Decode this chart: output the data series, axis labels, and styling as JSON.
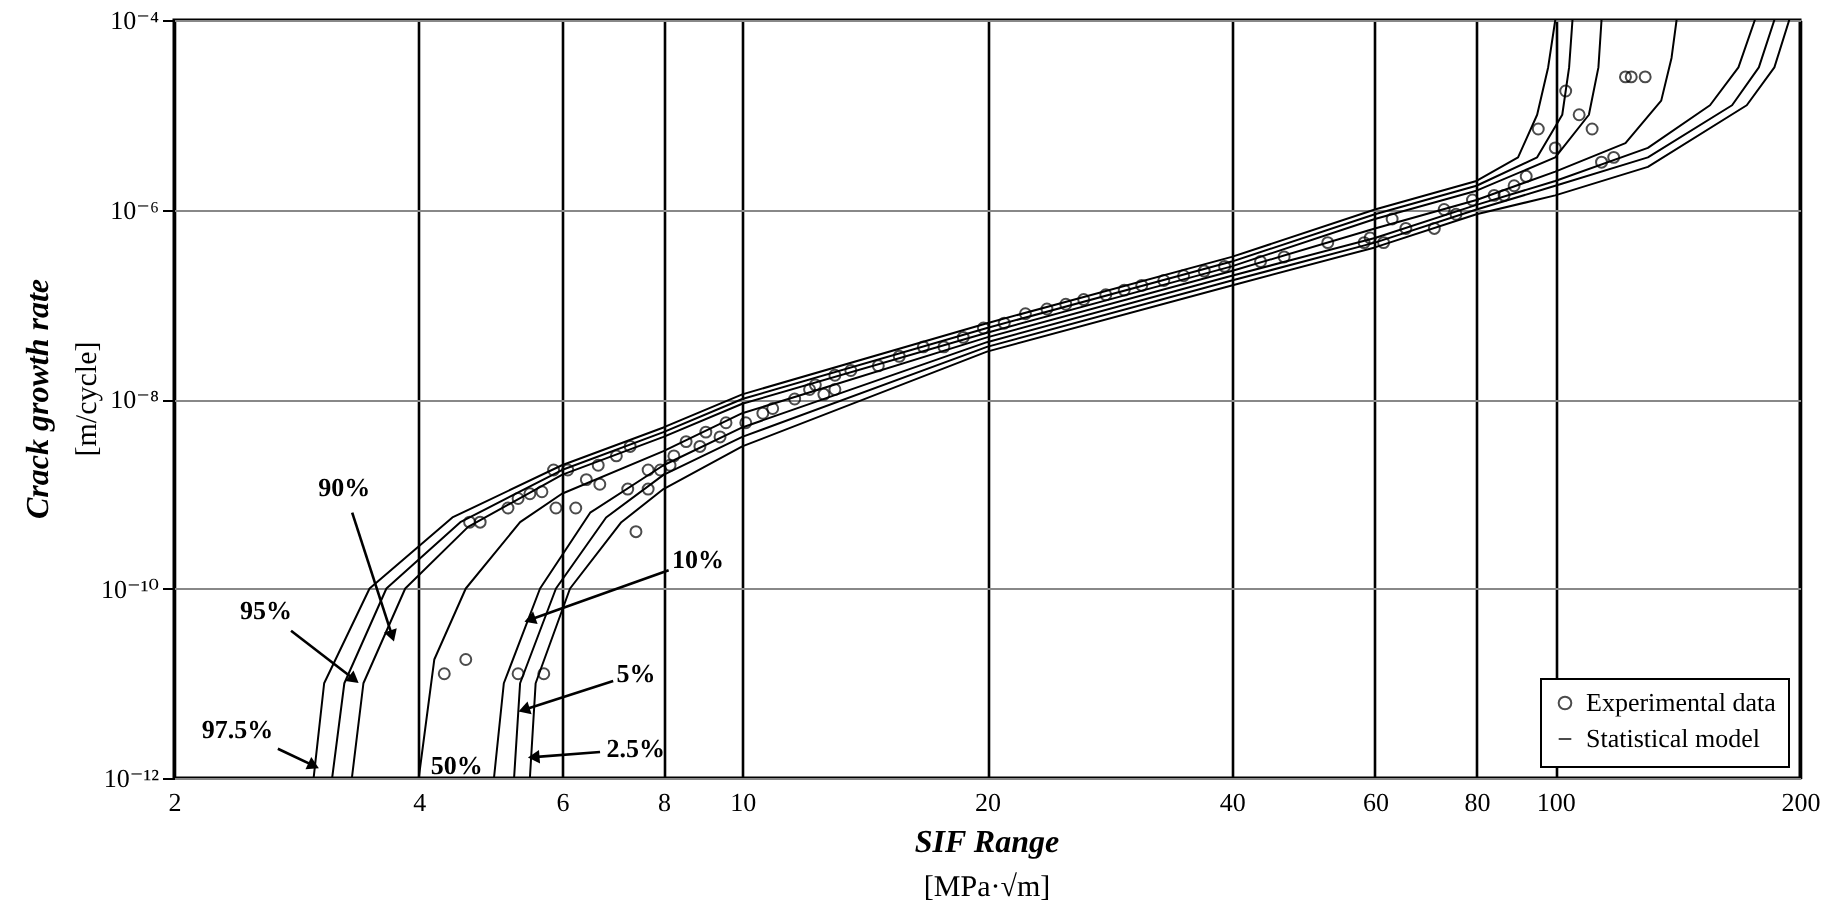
{
  "chart_data": {
    "type": "line",
    "xlabel": "SIF Range\n[MPa·√m]",
    "ylabel": "Crack growth rate\n[m/cycle]",
    "xlim": [
      2,
      200
    ],
    "ylim": [
      1e-12,
      0.0001
    ],
    "xticks": [
      2,
      4,
      6,
      8,
      10,
      20,
      40,
      60,
      80,
      100,
      200
    ],
    "yticks": [
      {
        "value": 1e-12,
        "label": "10⁻¹²"
      },
      {
        "value": 1e-10,
        "label": "10⁻¹⁰"
      },
      {
        "value": 1e-08,
        "label": "10⁻⁸"
      },
      {
        "value": 1e-06,
        "label": "10⁻⁶"
      },
      {
        "value": 0.0001,
        "label": "10⁻⁴"
      }
    ],
    "log": "xy",
    "grid": true,
    "legend": "bottom right",
    "series": [
      {
        "type": "line",
        "name": "Statistical model",
        "color": "#000000",
        "x": [
          2.97,
          3.06,
          3.48,
          4.4,
          6,
          8,
          10,
          20,
          40,
          60,
          80,
          90,
          95,
          98,
          100
        ],
        "values": [
          1e-12,
          1e-11,
          1e-10,
          5.62e-10,
          2e-09,
          5.01e-09,
          1.12e-08,
          6.31e-08,
          3.16e-07,
          1e-06,
          2e-06,
          3.55e-06,
          1e-05,
          3.16e-05,
          0.0001
        ]
      },
      {
        "type": "line",
        "color": "#000000",
        "x": [
          3.13,
          3.24,
          3.65,
          4.5,
          6,
          8,
          10,
          20,
          40,
          60,
          80,
          95,
          102,
          104,
          105
        ],
        "values": [
          1e-12,
          1e-11,
          1e-10,
          5.01e-10,
          1.78e-09,
          4.47e-09,
          1e-08,
          5.62e-08,
          2.82e-07,
          8.91e-07,
          1.78e-06,
          3.55e-06,
          1e-05,
          3.16e-05,
          0.0001
        ]
      },
      {
        "type": "line",
        "color": "#000000",
        "x": [
          3.31,
          3.42,
          3.85,
          4.6,
          6,
          8,
          10,
          20,
          40,
          60,
          80,
          100,
          110,
          113,
          114
        ],
        "values": [
          1e-12,
          1e-11,
          1e-10,
          4.47e-10,
          1.58e-09,
          3.98e-09,
          8.91e-09,
          5.01e-08,
          2.51e-07,
          7.94e-07,
          1.58e-06,
          3.55e-06,
          1e-05,
          3.16e-05,
          0.0001
        ]
      },
      {
        "type": "line",
        "color": "#000000",
        "x": [
          4.0,
          4.18,
          4.57,
          5.33,
          6,
          8,
          10,
          20,
          40,
          60,
          80,
          100,
          122,
          135,
          139,
          141
        ],
        "values": [
          1e-12,
          1.78e-11,
          1e-10,
          5.01e-10,
          1e-09,
          2.82e-09,
          7.08e-09,
          4.47e-08,
          2.24e-07,
          6.31e-07,
          1.26e-06,
          2.51e-06,
          5.01e-06,
          1.41e-05,
          3.98e-05,
          0.0001
        ]
      },
      {
        "type": "line",
        "color": "#000000",
        "x": [
          4.95,
          5.09,
          5.64,
          6.5,
          8,
          10,
          20,
          40,
          60,
          80,
          100,
          130,
          155,
          168,
          176
        ],
        "values": [
          1e-12,
          1e-11,
          1e-10,
          6.31e-10,
          2e-09,
          5.01e-09,
          3.98e-08,
          2e-07,
          5.01e-07,
          1.12e-06,
          2e-06,
          4.47e-06,
          1.26e-05,
          3.16e-05,
          0.0001
        ]
      },
      {
        "type": "line",
        "color": "#000000",
        "x": [
          5.24,
          5.33,
          5.9,
          6.8,
          8,
          10,
          20,
          40,
          60,
          80,
          100,
          130,
          165,
          178,
          186
        ],
        "values": [
          1e-12,
          1e-11,
          1e-10,
          5.62e-10,
          1.58e-09,
          3.98e-09,
          3.55e-08,
          1.78e-07,
          4.47e-07,
          1e-06,
          1.78e-06,
          3.55e-06,
          1.26e-05,
          3.16e-05,
          0.0001
        ]
      },
      {
        "type": "line",
        "color": "#000000",
        "x": [
          5.48,
          5.57,
          6.14,
          7.1,
          8,
          10,
          20,
          40,
          60,
          80,
          100,
          130,
          172,
          186,
          194
        ],
        "values": [
          1e-12,
          1e-11,
          1e-10,
          5.01e-10,
          1.12e-09,
          3.16e-09,
          3.16e-08,
          1.58e-07,
          3.98e-07,
          8.91e-07,
          1.41e-06,
          2.82e-06,
          1.26e-05,
          3.16e-05,
          0.0001
        ]
      },
      {
        "type": "scatter",
        "name": "Experimental data",
        "color": "#000000",
        "marker": "circle",
        "x": [
          4.3,
          4.57,
          4.62,
          4.76,
          5.15,
          5.3,
          5.48,
          5.67,
          5.9,
          5.86,
          6.1,
          6.24,
          6.43,
          6.65,
          6.68,
          7.0,
          7.23,
          7.28,
          7.4,
          7.66,
          7.66,
          7.93,
          8.15,
          8.24,
          5.3,
          5.7,
          8.53,
          8.87,
          9.02,
          9.39,
          9.55,
          10.1,
          10.6,
          10.9,
          11.6,
          12.1,
          12.3,
          12.6,
          13.0,
          13.0,
          13.6,
          14.7,
          15.6,
          16.7,
          17.7,
          18.7,
          19.8,
          21.0,
          22.3,
          23.7,
          25.0,
          26.3,
          28.0,
          29.5,
          31.0,
          33.0,
          34.9,
          37.0,
          39.2,
          43.4,
          46.4,
          52.5,
          58.2,
          59.2,
          61.5,
          63.0,
          65.5,
          71.0,
          73.0,
          75.5,
          79.1,
          84.1,
          86.5,
          89.0,
          92.1,
          95.3,
          100,
          103,
          107,
          111,
          114,
          118,
          122,
          124,
          129
        ],
        "values": [
          1.26e-11,
          1.78e-11,
          5.01e-10,
          5.01e-10,
          7.08e-10,
          8.91e-10,
          1e-09,
          1.05e-09,
          7.08e-10,
          1.78e-09,
          1.78e-09,
          7.08e-10,
          1.41e-09,
          2e-09,
          1.26e-09,
          2.51e-09,
          1.12e-09,
          3.16e-09,
          3.98e-10,
          1.12e-09,
          1.78e-09,
          1.78e-09,
          2e-09,
          2.51e-09,
          1.26e-11,
          1.26e-11,
          3.55e-09,
          3.16e-09,
          4.47e-09,
          3.98e-09,
          5.62e-09,
          5.62e-09,
          7.08e-09,
          7.94e-09,
          1e-08,
          1.26e-08,
          1.41e-08,
          1.12e-08,
          1.26e-08,
          1.78e-08,
          2e-08,
          2.24e-08,
          2.82e-08,
          3.55e-08,
          3.55e-08,
          4.47e-08,
          5.62e-08,
          6.31e-08,
          7.94e-08,
          8.91e-08,
          1e-07,
          1.12e-07,
          1.26e-07,
          1.41e-07,
          1.58e-07,
          1.78e-07,
          2e-07,
          2.24e-07,
          2.51e-07,
          2.82e-07,
          3.16e-07,
          4.47e-07,
          4.47e-07,
          5.01e-07,
          4.47e-07,
          7.94e-07,
          6.31e-07,
          6.31e-07,
          1e-06,
          8.91e-07,
          1.26e-06,
          1.41e-06,
          1.41e-06,
          1.78e-06,
          2.24e-06,
          7.08e-06,
          4.47e-06,
          1.78e-05,
          1e-05,
          7.08e-06,
          3.16e-06,
          3.55e-06,
          2.51e-05,
          2.51e-05,
          2.51e-05
        ]
      }
    ],
    "annotations": [
      {
        "text": "97.5%",
        "x": 2.97,
        "y": 1.35e-12
      },
      {
        "text": "95%",
        "x": 3.33,
        "y": 1.1e-11
      },
      {
        "text": "90%",
        "x": 3.71,
        "y": 3.16e-11
      },
      {
        "text": "50%",
        "x": 4.0,
        "y": 1e-12
      },
      {
        "text": "10%",
        "x": 5.48,
        "y": 4.68e-11
      },
      {
        "text": "5%",
        "x": 5.39,
        "y": 5.25e-12
      },
      {
        "text": "2.5%",
        "x": 5.54,
        "y": 1.66e-12
      }
    ]
  }
}
